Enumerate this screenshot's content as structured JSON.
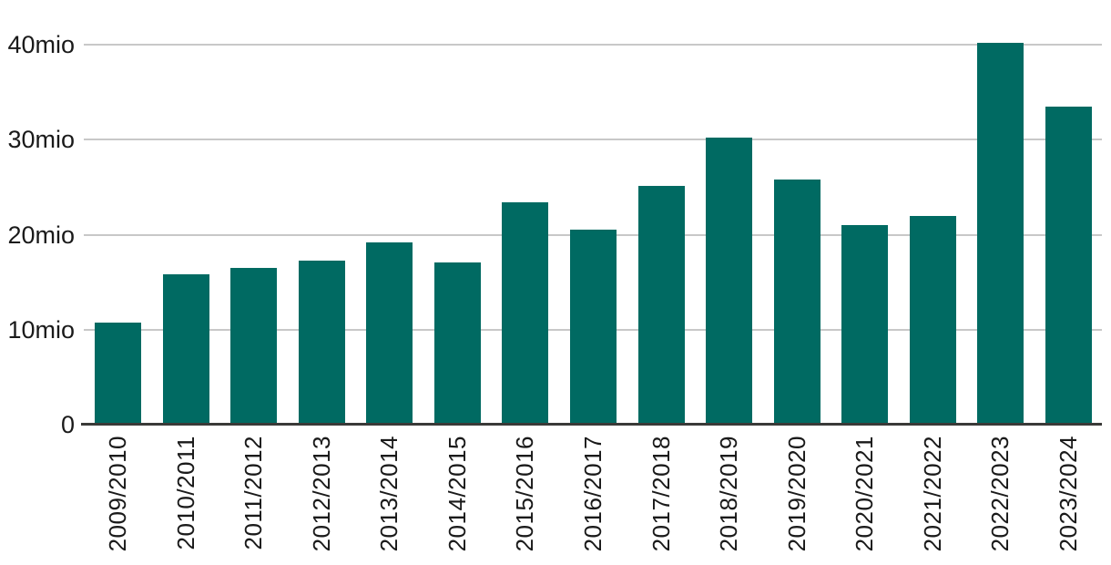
{
  "chart_data": {
    "type": "bar",
    "title": "",
    "xlabel": "",
    "ylabel": "",
    "unit": "mio",
    "categories": [
      "2009/2010",
      "2010/2011",
      "2011/2012",
      "2012/2013",
      "2013/2014",
      "2014/2015",
      "2015/2016",
      "2016/2017",
      "2017/2018",
      "2018/2019",
      "2019/2020",
      "2020/2021",
      "2021/2022",
      "2022/2023",
      "2023/2024"
    ],
    "values": [
      10.8,
      15.8,
      16.5,
      17.3,
      19.2,
      17.1,
      23.4,
      20.5,
      25.1,
      30.2,
      25.8,
      21.0,
      22.0,
      40.2,
      33.5
    ],
    "y_ticks": [
      {
        "value": 0,
        "label": "0"
      },
      {
        "value": 10,
        "label": "10mio"
      },
      {
        "value": 20,
        "label": "20mio"
      },
      {
        "value": 30,
        "label": "30mio"
      },
      {
        "value": 40,
        "label": "40mio"
      }
    ],
    "ylim": [
      0,
      42.8
    ],
    "grid": "horizontal",
    "legend": "none",
    "colors": {
      "bar": "#006A62",
      "gridline": "#C8C8C8",
      "axis_line": "#3A3A38",
      "text": "#1A1A1A"
    }
  }
}
